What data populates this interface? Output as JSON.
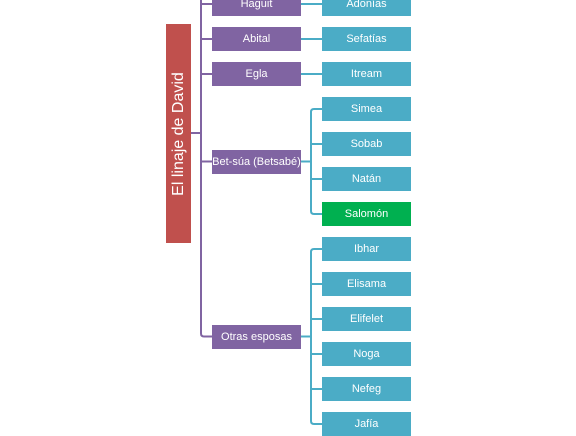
{
  "root": {
    "label": "El linaje de David"
  },
  "colors": {
    "root": "#c0504d",
    "wife": "#8064a2",
    "child": "#4bacc6",
    "highlight": "#00b050"
  },
  "wives": [
    {
      "name": "Haguit",
      "children": [
        {
          "name": "Adonías"
        }
      ]
    },
    {
      "name": "Abital",
      "children": [
        {
          "name": "Sefatías"
        }
      ]
    },
    {
      "name": "Egla",
      "children": [
        {
          "name": "Itream"
        }
      ]
    },
    {
      "name": "Bet-súa (Betsabé)",
      "children": [
        {
          "name": "Simea"
        },
        {
          "name": "Sobab"
        },
        {
          "name": "Natán"
        },
        {
          "name": "Salomón",
          "highlight": true
        }
      ]
    },
    {
      "name": "Otras esposas",
      "children": [
        {
          "name": "Ibhar"
        },
        {
          "name": "Elisama"
        },
        {
          "name": "Elifelet"
        },
        {
          "name": "Noga"
        },
        {
          "name": "Nefeg"
        },
        {
          "name": "Jafía"
        }
      ]
    }
  ]
}
